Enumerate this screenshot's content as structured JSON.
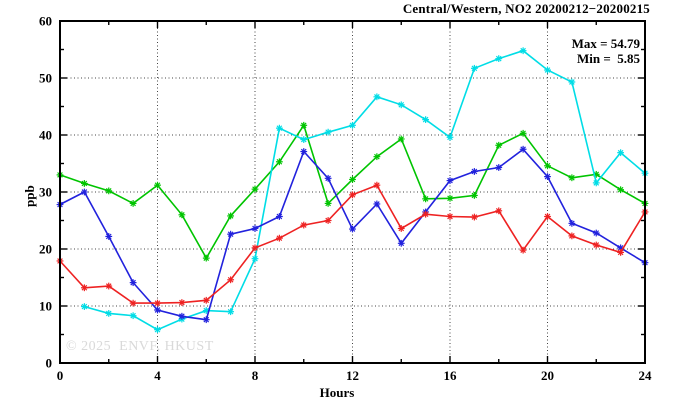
{
  "header": {
    "title": "Central/Western, NO2 20200212−20200215"
  },
  "annotations": {
    "max_label": "Max = 54.79",
    "min_label": "Min =  5.85"
  },
  "watermark": "© 2025  ENVF, HKUST",
  "axes": {
    "xlabel": "Hours",
    "ylabel": "ppb",
    "xticks": [
      0,
      4,
      8,
      12,
      16,
      20,
      24
    ],
    "yticks": [
      0,
      10,
      20,
      30,
      40,
      50,
      60
    ],
    "xminor_step": 2,
    "yminor_step": 5,
    "grid": true
  },
  "colors": {
    "border": "#000000",
    "grid": "#444444",
    "watermark": "#d9d9d9"
  },
  "chart_data": {
    "type": "line",
    "title": "Central/Western, NO2 20200212−20200215",
    "xlabel": "Hours",
    "ylabel": "ppb",
    "xlim": [
      0,
      24
    ],
    "ylim": [
      0,
      60
    ],
    "grid": true,
    "legend_position": "none",
    "marker": "asterisk",
    "max_value": 54.79,
    "min_value": 5.85,
    "x": [
      0,
      1,
      2,
      3,
      4,
      5,
      6,
      7,
      8,
      9,
      10,
      11,
      12,
      13,
      14,
      15,
      16,
      17,
      18,
      19,
      20,
      21,
      22,
      23,
      24
    ],
    "series": [
      {
        "name": "green-line",
        "color": "#00c400",
        "values": [
          33.0,
          31.5,
          30.2,
          28.0,
          31.2,
          26.0,
          18.4,
          25.8,
          30.5,
          35.3,
          41.7,
          28.0,
          32.2,
          36.2,
          39.3,
          28.8,
          28.9,
          29.4,
          38.2,
          40.3,
          34.6,
          32.5,
          33.1,
          30.4,
          28.0
        ]
      },
      {
        "name": "cyan-line",
        "color": "#00dde6",
        "values": [
          null,
          9.9,
          8.7,
          8.3,
          5.85,
          7.7,
          9.2,
          9.0,
          18.3,
          41.2,
          39.2,
          40.5,
          41.7,
          46.7,
          45.3,
          42.7,
          39.6,
          51.7,
          53.4,
          54.79,
          51.4,
          49.3,
          31.6,
          36.9,
          33.3
        ]
      },
      {
        "name": "blue-line",
        "color": "#2222dd",
        "values": [
          27.8,
          30.0,
          22.2,
          14.1,
          9.3,
          8.2,
          7.6,
          22.6,
          23.6,
          25.7,
          37.1,
          32.4,
          23.5,
          27.9,
          21.0,
          26.5,
          32.0,
          33.6,
          34.3,
          37.5,
          32.7,
          24.5,
          22.8,
          20.2,
          17.6
        ]
      },
      {
        "name": "red-line",
        "color": "#ee2222",
        "values": [
          17.9,
          13.2,
          13.5,
          10.5,
          10.5,
          10.6,
          11.0,
          14.6,
          20.2,
          21.9,
          24.2,
          25.0,
          29.5,
          31.2,
          23.6,
          26.1,
          25.7,
          25.6,
          26.7,
          19.8,
          25.7,
          22.3,
          20.7,
          19.4,
          26.5
        ]
      }
    ]
  }
}
